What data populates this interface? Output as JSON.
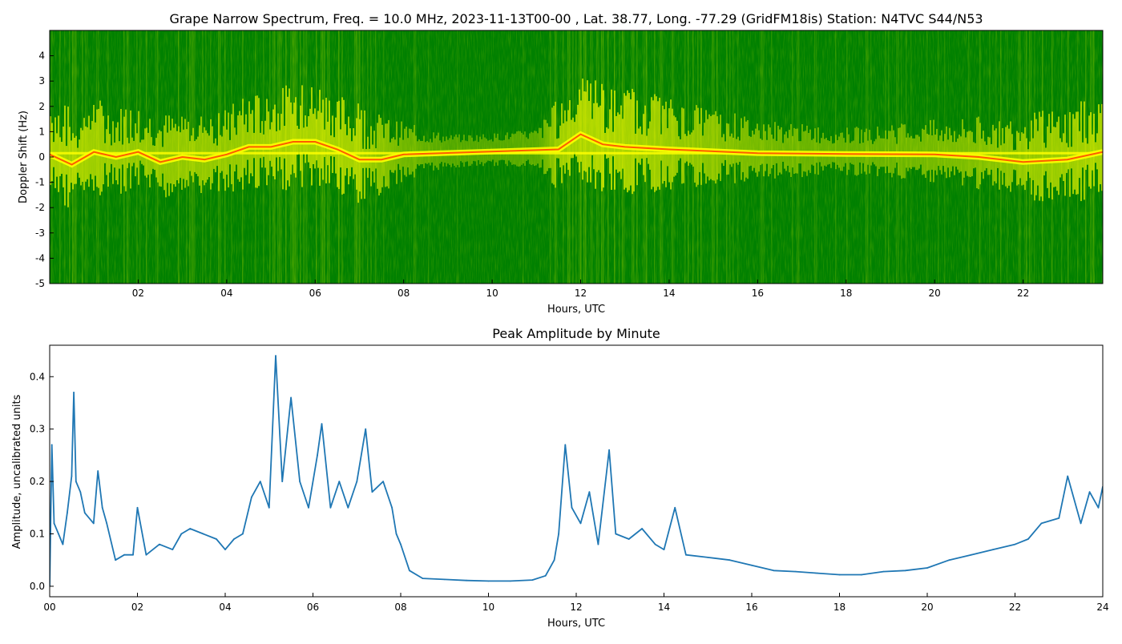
{
  "figure_title": "Grape Narrow Spectrum, Freq. = 10.0 MHz, 2023-11-13T00-00 , Lat.  38.77, Long. -77.29 (GridFM18is) Station: N4TVC S44/N53",
  "colors": {
    "background": "#ffffff",
    "spectrogram_base": "#008000",
    "spectrogram_mid": "#ffff00",
    "spectrogram_hot": "#ff4000",
    "line": "#1f77b4"
  },
  "chart_data": [
    {
      "type": "heatmap",
      "title": "",
      "xlabel": "Hours, UTC",
      "ylabel": "Doppler Shift (Hz)",
      "xlim": [
        0,
        23.8
      ],
      "ylim": [
        -5,
        5
      ],
      "x_ticks": [
        "02",
        "04",
        "06",
        "08",
        "10",
        "12",
        "14",
        "16",
        "18",
        "20",
        "22"
      ],
      "y_ticks": [
        "-5",
        "-4",
        "-3",
        "-2",
        "-1",
        "0",
        "1",
        "2",
        "3",
        "4"
      ],
      "colormap": [
        "#008000",
        "#ffff00",
        "#ff4000"
      ],
      "grid": false,
      "doppler_trace": {
        "hours": [
          0,
          0.5,
          1,
          1.5,
          2,
          2.5,
          3,
          3.5,
          4,
          4.5,
          5,
          5.5,
          6,
          6.5,
          7,
          7.5,
          8,
          11.5,
          12,
          12.5,
          13,
          14,
          16,
          18,
          20,
          21,
          22,
          23,
          23.8
        ],
        "shift_hz": [
          0.1,
          -0.3,
          0.2,
          0.0,
          0.2,
          -0.2,
          0.0,
          -0.1,
          0.1,
          0.4,
          0.4,
          0.6,
          0.6,
          0.3,
          -0.1,
          -0.1,
          0.1,
          0.3,
          0.9,
          0.5,
          0.4,
          0.3,
          0.15,
          0.12,
          0.1,
          0.0,
          -0.2,
          -0.1,
          0.2
        ]
      },
      "activity_intensity": {
        "hours": [
          0,
          1,
          2,
          3,
          4,
          5,
          6,
          7,
          8,
          9,
          10,
          11,
          11.5,
          12,
          12.5,
          13,
          14,
          15,
          16,
          17,
          18,
          19,
          20,
          21,
          22,
          23,
          23.8
        ],
        "intensity": [
          0.9,
          0.8,
          0.7,
          0.7,
          0.7,
          0.85,
          0.9,
          0.85,
          0.4,
          0.15,
          0.15,
          0.2,
          0.8,
          0.9,
          0.95,
          0.9,
          0.75,
          0.6,
          0.45,
          0.35,
          0.3,
          0.35,
          0.45,
          0.55,
          0.7,
          0.8,
          0.9
        ]
      }
    },
    {
      "type": "line",
      "title": "Peak Amplitude by Minute",
      "xlabel": "Hours, UTC",
      "ylabel": "Amplitude, uncalibrated units",
      "xlim": [
        0,
        24
      ],
      "ylim": [
        -0.02,
        0.46
      ],
      "x_ticks": [
        "00",
        "02",
        "04",
        "06",
        "08",
        "10",
        "12",
        "14",
        "16",
        "18",
        "20",
        "22",
        "24"
      ],
      "y_ticks": [
        "0.0",
        "0.1",
        "0.2",
        "0.3",
        "0.4"
      ],
      "grid": false,
      "series": [
        {
          "x": [
            0,
            0.05,
            0.1,
            0.2,
            0.3,
            0.4,
            0.5,
            0.55,
            0.6,
            0.7,
            0.8,
            1.0,
            1.1,
            1.2,
            1.3,
            1.5,
            1.7,
            1.9,
            2.0,
            2.2,
            2.5,
            2.8,
            3.0,
            3.2,
            3.5,
            3.8,
            4.0,
            4.2,
            4.4,
            4.6,
            4.8,
            5.0,
            5.15,
            5.3,
            5.5,
            5.7,
            5.9,
            6.1,
            6.2,
            6.4,
            6.6,
            6.8,
            7.0,
            7.2,
            7.35,
            7.6,
            7.8,
            7.9,
            8.0,
            8.2,
            8.5,
            9.0,
            9.5,
            10.0,
            10.5,
            11.0,
            11.3,
            11.5,
            11.6,
            11.75,
            11.9,
            12.1,
            12.3,
            12.5,
            12.75,
            12.9,
            13.2,
            13.5,
            13.8,
            14.0,
            14.25,
            14.5,
            15.0,
            15.5,
            16.0,
            16.5,
            17.0,
            17.5,
            18.0,
            18.5,
            19.0,
            19.5,
            20.0,
            20.5,
            21.0,
            21.5,
            22.0,
            22.3,
            22.6,
            23.0,
            23.2,
            23.5,
            23.7,
            23.9,
            24.0
          ],
          "y": [
            0.0,
            0.27,
            0.12,
            0.1,
            0.08,
            0.14,
            0.21,
            0.37,
            0.2,
            0.18,
            0.14,
            0.12,
            0.22,
            0.15,
            0.12,
            0.05,
            0.06,
            0.06,
            0.15,
            0.06,
            0.08,
            0.07,
            0.1,
            0.11,
            0.1,
            0.09,
            0.07,
            0.09,
            0.1,
            0.17,
            0.2,
            0.15,
            0.44,
            0.2,
            0.36,
            0.2,
            0.15,
            0.25,
            0.31,
            0.15,
            0.2,
            0.15,
            0.2,
            0.3,
            0.18,
            0.2,
            0.15,
            0.1,
            0.08,
            0.03,
            0.015,
            0.013,
            0.011,
            0.01,
            0.01,
            0.012,
            0.02,
            0.05,
            0.1,
            0.27,
            0.15,
            0.12,
            0.18,
            0.08,
            0.26,
            0.1,
            0.09,
            0.11,
            0.08,
            0.07,
            0.15,
            0.06,
            0.055,
            0.05,
            0.04,
            0.03,
            0.028,
            0.025,
            0.022,
            0.022,
            0.028,
            0.03,
            0.035,
            0.05,
            0.06,
            0.07,
            0.08,
            0.09,
            0.12,
            0.13,
            0.21,
            0.12,
            0.18,
            0.15,
            0.19
          ]
        }
      ]
    }
  ]
}
